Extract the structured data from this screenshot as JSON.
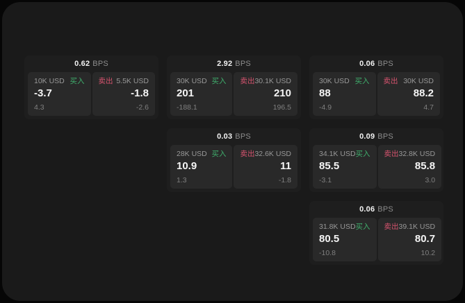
{
  "theme": {
    "outer_bg": "#060606",
    "panel_bg": "#1a1a1a",
    "card_bg": "#1e1e1e",
    "tile_bg": "#292929",
    "buy_color": "#3fae6c",
    "sell_color": "#d5536e",
    "value_color": "#f5f5f5",
    "label_color": "#989898"
  },
  "labels": {
    "buy": "买入",
    "sell": "卖出",
    "bps_unit": "BPS"
  },
  "cards": [
    {
      "row": 1,
      "col": 1,
      "bps": "0.62",
      "buy": {
        "amount": "10K USD",
        "value": "-3.7",
        "delta": "4.3"
      },
      "sell": {
        "amount": "5.5K USD",
        "value": "-1.8",
        "delta": "-2.6"
      }
    },
    {
      "row": 1,
      "col": 2,
      "bps": "2.92",
      "buy": {
        "amount": "30K USD",
        "value": "201",
        "delta": "-188.1"
      },
      "sell": {
        "amount": "30.1K USD",
        "value": "210",
        "delta": "196.5"
      }
    },
    {
      "row": 1,
      "col": 3,
      "bps": "0.06",
      "buy": {
        "amount": "30K USD",
        "value": "88",
        "delta": "-4.9"
      },
      "sell": {
        "amount": "30K USD",
        "value": "88.2",
        "delta": "4.7"
      }
    },
    {
      "row": 2,
      "col": 2,
      "bps": "0.03",
      "buy": {
        "amount": "28K USD",
        "value": "10.9",
        "delta": "1.3"
      },
      "sell": {
        "amount": "32.6K USD",
        "value": "11",
        "delta": "-1.8"
      }
    },
    {
      "row": 2,
      "col": 3,
      "bps": "0.09",
      "buy": {
        "amount": "34.1K USD",
        "value": "85.5",
        "delta": "-3.1"
      },
      "sell": {
        "amount": "32.8K USD",
        "value": "85.8",
        "delta": "3.0"
      }
    },
    {
      "row": 3,
      "col": 3,
      "bps": "0.06",
      "buy": {
        "amount": "31.8K USD",
        "value": "80.5",
        "delta": "-10.8"
      },
      "sell": {
        "amount": "39.1K USD",
        "value": "80.7",
        "delta": "10.2"
      }
    }
  ]
}
